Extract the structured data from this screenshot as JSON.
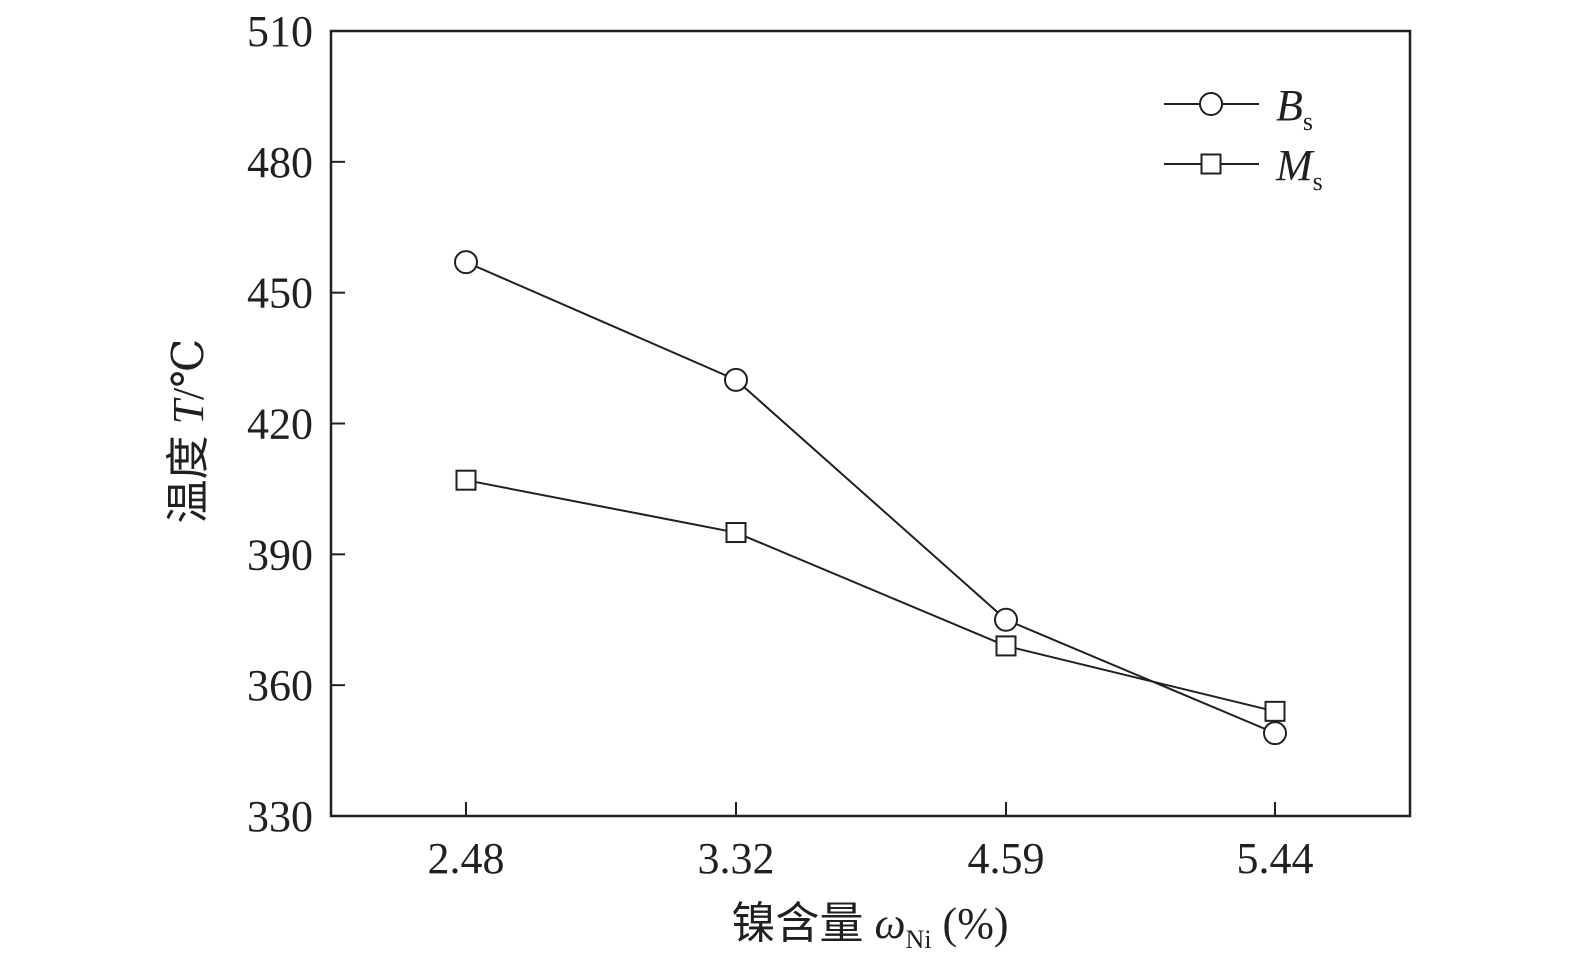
{
  "chart_data": {
    "type": "line",
    "categories": [
      "2.48",
      "3.32",
      "4.59",
      "5.44"
    ],
    "series": [
      {
        "name": "B",
        "name_sub": "s",
        "marker": "circle",
        "values": [
          457,
          430,
          375,
          349
        ]
      },
      {
        "name": "M",
        "name_sub": "s",
        "marker": "square",
        "values": [
          407,
          395,
          369,
          354
        ]
      }
    ],
    "xlabel": "镍含量 ωNi (%)",
    "xlabel_parts": {
      "prefix": "镍含量 ",
      "symbol": "ω",
      "sub": "Ni",
      "suffix": " (%)"
    },
    "ylabel": "温度 T/℃",
    "ylabel_parts": {
      "prefix": "温度 ",
      "symbol": "T",
      "suffix": "/℃"
    },
    "ylim": [
      330,
      510
    ],
    "yticks": [
      "330",
      "360",
      "390",
      "420",
      "450",
      "480",
      "510"
    ],
    "grid": false,
    "legend_position": "top-right",
    "colors": {
      "line": "#231f20",
      "marker_fill": "#ffffff"
    }
  }
}
